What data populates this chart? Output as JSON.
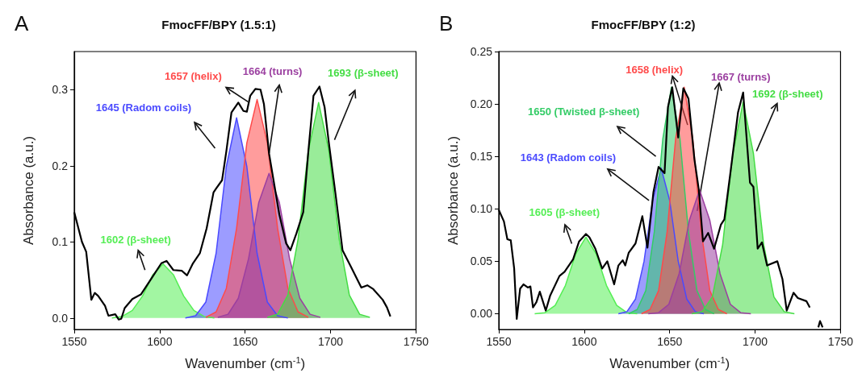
{
  "chart_data": [
    {
      "type": "area",
      "title": "FmocFF/BPY (1.5:1)",
      "xlabel": "Wavenumber (cm$^{-1}$)",
      "ylabel": "Absorbance (a.u.)",
      "xlim": [
        1550,
        1750
      ],
      "xticks": [
        1550,
        1600,
        1650,
        1700,
        1750
      ],
      "ylim": [
        -0.015,
        0.35
      ],
      "yticks": [
        {
          "value": 0,
          "label": "0.0"
        },
        {
          "value": 0.1,
          "label": "0.1"
        },
        {
          "value": 0.2,
          "label": "0.2"
        },
        {
          "value": 0.3,
          "label": "0.3"
        }
      ],
      "annotations": [
        "A",
        "1602 (β-sheet)",
        "1645 (Radom coils)",
        {
          "text": "1657 (helix)",
          "x": 1651.7,
          "y": 0.284
        },
        {
          "text": "1664 (turns)",
          "x": 1664,
          "y": 0.216
        },
        "1693 (β-sheet)"
      ],
      "series": [
        {
          "type": "line",
          "color": "#000000",
          "x": [
            1550,
            1554.5,
            1557,
            1560,
            1562,
            1564,
            1568,
            1570,
            1574,
            1576,
            1577.5,
            1579.5,
            1584,
            1589,
            1595.5,
            1601,
            1604,
            1608,
            1613,
            1616,
            1619.5,
            1623.5,
            1627.5,
            1631.5,
            1633,
            1636.5,
            1639,
            1642,
            1646,
            1649,
            1651,
            1653,
            1656,
            1659,
            1661,
            1664,
            1667,
            1670,
            1674,
            1676.5,
            1680,
            1684,
            1687,
            1690,
            1693.5,
            1696.5,
            1699,
            1703,
            1707,
            1712,
            1716,
            1718,
            1721.5,
            1725,
            1730.5,
            1733,
            1735
          ],
          "values": [
            0.139,
            0.1,
            0.087,
            0.024,
            0.033,
            0.029,
            0.016,
            0.003,
            0.005,
            -0.002,
            -0.001,
            0.013,
            0.025,
            0.031,
            0.053,
            0.072,
            0.075,
            0.063,
            0.062,
            0.056,
            0.072,
            0.085,
            0.118,
            0.165,
            0.17,
            0.181,
            0.219,
            0.27,
            0.283,
            0.272,
            0.271,
            0.292,
            0.301,
            0.3,
            0.281,
            0.216,
            0.176,
            0.136,
            0.098,
            0.089,
            0.111,
            0.139,
            0.219,
            0.292,
            0.304,
            0.277,
            0.23,
            0.161,
            0.089,
            0.067,
            0.049,
            0.04,
            0.043,
            0.038,
            0.024,
            0.014,
            0.002
          ]
        },
        {
          "color": "#55ee55",
          "x": [
            1572,
            1578,
            1584,
            1590,
            1596,
            1602,
            1608,
            1614,
            1620,
            1626,
            1632
          ],
          "values": [
            0,
            0.002,
            0.01,
            0.029,
            0.057,
            0.071,
            0.057,
            0.029,
            0.01,
            0.002,
            0
          ]
        },
        {
          "color": "#4a4aff",
          "x": [
            1615,
            1621,
            1627,
            1633,
            1639,
            1645,
            1651,
            1657,
            1663,
            1669,
            1675
          ],
          "values": [
            0,
            0.003,
            0.021,
            0.085,
            0.199,
            0.263,
            0.199,
            0.085,
            0.021,
            0.003,
            0
          ]
        },
        {
          "color": "#ff4a4a",
          "x": [
            1627,
            1633,
            1639,
            1645,
            1651,
            1657,
            1663,
            1669,
            1675,
            1681,
            1687
          ],
          "values": [
            0.001,
            0.008,
            0.039,
            0.118,
            0.23,
            0.287,
            0.23,
            0.118,
            0.039,
            0.008,
            0.001
          ]
        },
        {
          "color": "#9b3fa0",
          "x": [
            1634,
            1640,
            1646,
            1652,
            1658,
            1664,
            1670,
            1676,
            1682,
            1688,
            1694
          ],
          "values": [
            0.001,
            0.005,
            0.026,
            0.078,
            0.152,
            0.19,
            0.152,
            0.078,
            0.026,
            0.005,
            0.001
          ]
        },
        {
          "color": "#44dd44",
          "x": [
            1663,
            1669,
            1675,
            1681,
            1687,
            1693,
            1699,
            1705,
            1711,
            1717,
            1723
          ],
          "values": [
            0.001,
            0.005,
            0.03,
            0.104,
            0.22,
            0.283,
            0.22,
            0.104,
            0.03,
            0.005,
            0.001
          ]
        }
      ]
    },
    {
      "type": "area",
      "title": "FmocFF/BPY (1:2)",
      "xlabel": "Wavenumber (cm$^{-1}$)",
      "ylabel": "Absorbance (a.u.)",
      "xlim": [
        1550,
        1750
      ],
      "xticks": [
        1550,
        1600,
        1650,
        1700,
        1750
      ],
      "ylim": [
        -0.015,
        0.25
      ],
      "yticks": [
        {
          "value": 0,
          "label": "0.00"
        },
        {
          "value": 0.05,
          "label": "0.05"
        },
        {
          "value": 0.1,
          "label": "0.10"
        },
        {
          "value": 0.15,
          "label": "0.15"
        },
        {
          "value": 0.2,
          "label": "0.20"
        },
        0.25
      ],
      "annotations": [
        "B",
        "1605 (β-sheet)",
        {
          "text": "1643 (Radom coils)",
          "x": 1637.9,
          "y": 0.108
        },
        "1650 (Twisted β-sheet)",
        {
          "text": "1658 (helix)",
          "x": 1660.5,
          "y": 0.18
        },
        {
          "text": "1667 (turns)",
          "x": 1666.1,
          "y": 0.098
        },
        {
          "text": "1692 (β-sheet)",
          "x": 1700.8,
          "y": 0.155
        }
      ],
      "series": [
        {
          "type": "line",
          "color": "#000000",
          "x": [
            1550,
            1553,
            1555,
            1557,
            1559,
            1560.5,
            1562.5,
            1564.5,
            1567,
            1568.5,
            1570,
            1572,
            1574,
            1577.5,
            1580,
            1585.5,
            1588.5,
            1593.5,
            1597,
            1601,
            1603,
            1606.5,
            1610.5,
            1613.5,
            1617.5,
            1620,
            1622.5,
            1624,
            1626,
            1630,
            1634,
            1637,
            1640.5,
            1643.5,
            1647,
            1649,
            1651.5,
            1655,
            1658,
            1661,
            1664.5,
            1667,
            1669.5,
            1672.5,
            1676,
            1680,
            1682,
            1685.5,
            1690,
            1693,
            1697,
            1699,
            1701.5,
            1704,
            1707,
            1713,
            1716,
            1718.5,
            1722.5,
            1725,
            1730,
            1732,
            1733.5,
            1737,
            1738,
            1739.5
          ],
          "values": [
            0.099,
            0.088,
            0.071,
            0.07,
            0.043,
            -0.005,
            0.024,
            0.028,
            0.025,
            0.026,
            0.006,
            0.011,
            0.021,
            0.003,
            0.017,
            0.036,
            0.04,
            0.052,
            0.069,
            0.076,
            0.073,
            0.062,
            0.043,
            0.05,
            0.028,
            0.046,
            0.051,
            0.046,
            0.058,
            0.067,
            0.093,
            0.063,
            0.116,
            0.14,
            0.134,
            0.197,
            0.216,
            0.168,
            0.215,
            0.205,
            0.147,
            0.119,
            0.069,
            0.077,
            0.062,
            0.085,
            0.09,
            0.134,
            0.192,
            0.211,
            0.125,
            0.121,
            0.062,
            0.068,
            0.046,
            0.05,
            0.033,
            0.003,
            0.02,
            0.015,
            0.012,
            0.006,
            null,
            -0.013,
            -0.007,
            -0.013
          ]
        },
        {
          "color": "#55ee55",
          "x": [
            1571,
            1577,
            1583,
            1589,
            1595,
            1601,
            1607,
            1613,
            1619,
            1625,
            1631
          ],
          "values": [
            0,
            0.001,
            0.008,
            0.027,
            0.057,
            0.073,
            0.057,
            0.027,
            0.008,
            0.001,
            0
          ]
        },
        {
          "color": "#4a4aff",
          "x": [
            1620,
            1625,
            1630,
            1635,
            1640,
            1645,
            1650,
            1655,
            1660,
            1665,
            1670
          ],
          "values": [
            0,
            0.002,
            0.014,
            0.05,
            0.108,
            0.139,
            0.108,
            0.05,
            0.014,
            0.002,
            0
          ]
        },
        {
          "color": "#33cc66",
          "x": [
            1626,
            1631,
            1636,
            1641,
            1646,
            1651,
            1656,
            1661,
            1666,
            1671,
            1676
          ],
          "values": [
            0,
            0.004,
            0.022,
            0.078,
            0.167,
            0.216,
            0.167,
            0.078,
            0.022,
            0.004,
            0
          ]
        },
        {
          "color": "#ff4a4a",
          "x": [
            1633.5,
            1638.5,
            1643.5,
            1648.5,
            1653.5,
            1658.5,
            1663.5,
            1668.5,
            1673.5,
            1678.5,
            1683.5
          ],
          "values": [
            0,
            0.004,
            0.022,
            0.078,
            0.167,
            0.216,
            0.167,
            0.078,
            0.022,
            0.004,
            0
          ]
        },
        {
          "color": "#9b3fa0",
          "x": [
            1637.5,
            1643.5,
            1649.5,
            1655.5,
            1661.5,
            1667.5,
            1673.5,
            1679.5,
            1685.5,
            1691.5,
            1697.5
          ],
          "values": [
            0,
            0.001,
            0.009,
            0.038,
            0.089,
            0.118,
            0.089,
            0.038,
            0.009,
            0.001,
            0
          ]
        },
        {
          "color": "#44dd44",
          "x": [
            1663,
            1669,
            1675,
            1681,
            1687,
            1693,
            1699,
            1705,
            1711,
            1717,
            1723
          ],
          "values": [
            0,
            0.002,
            0.016,
            0.066,
            0.153,
            0.202,
            0.153,
            0.066,
            0.016,
            0.002,
            0
          ]
        }
      ]
    }
  ]
}
